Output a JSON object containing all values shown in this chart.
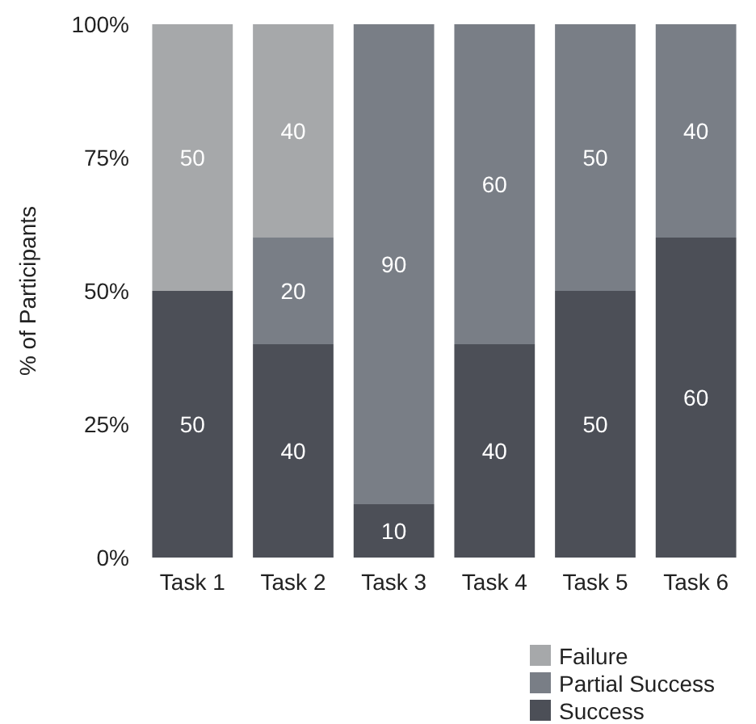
{
  "chart_data": {
    "type": "bar",
    "stacked": true,
    "ylabel": "% of Participants",
    "categories": [
      "Task 1",
      "Task 2",
      "Task 3",
      "Task 4",
      "Task 5",
      "Task 6"
    ],
    "series": [
      {
        "name": "Success",
        "color": "#4c4f57",
        "values": [
          50,
          40,
          10,
          40,
          50,
          60
        ]
      },
      {
        "name": "Partial Success",
        "color": "#797e86",
        "values": [
          null,
          20,
          90,
          60,
          50,
          40
        ]
      },
      {
        "name": "Failure",
        "color": "#a6a8aa",
        "values": [
          50,
          40,
          null,
          null,
          null,
          null
        ]
      }
    ],
    "data_labels": true,
    "ylim": [
      0,
      100
    ],
    "yticks": [
      {
        "value": 0,
        "label": "0%"
      },
      {
        "value": 25,
        "label": "25%"
      },
      {
        "value": 50,
        "label": "50%"
      },
      {
        "value": 75,
        "label": "75%"
      },
      {
        "value": 100,
        "label": "100%"
      }
    ],
    "grid": false,
    "legend": "bottom right"
  }
}
